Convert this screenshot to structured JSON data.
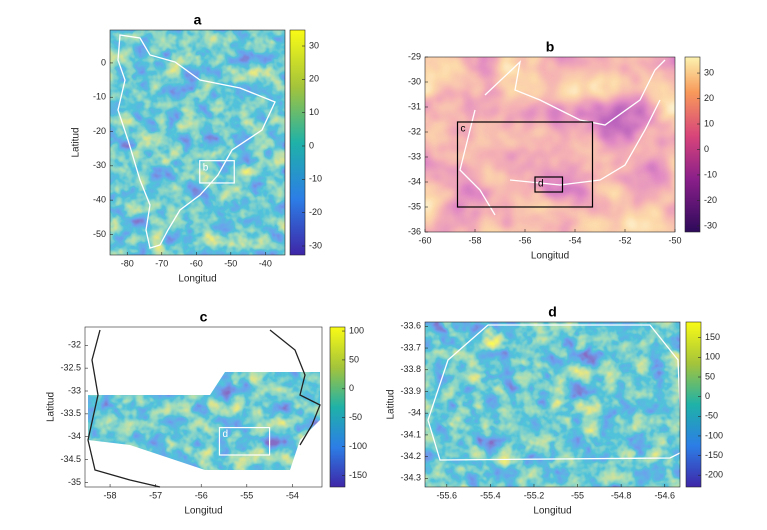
{
  "panels": [
    {
      "title": "a",
      "xlabel": "Longitud",
      "ylabel": "Latitud",
      "xlim": [
        -85,
        -34.3
      ],
      "ylim": [
        -56,
        9.6
      ],
      "xticks": [
        -80,
        -70,
        -60,
        -50,
        -40
      ],
      "yticks": [
        0,
        -10,
        -20,
        -30,
        -40,
        -50
      ],
      "colormap": "parula",
      "colorbar": {
        "lim": [
          -32.7,
          34.8
        ],
        "ticks": [
          30,
          20,
          10,
          0,
          -10,
          -20,
          -30
        ]
      },
      "boxes": [
        {
          "label": "b",
          "x": [
            -59,
            -49
          ],
          "y": [
            -35,
            -28.5
          ]
        }
      ]
    },
    {
      "title": "b",
      "xlabel": "Longitud",
      "xlim": [
        -60,
        -50
      ],
      "ylim": [
        -36,
        -29
      ],
      "xticks": [
        -60,
        -58,
        -56,
        -54,
        -52,
        -50
      ],
      "yticks": [
        -29,
        -30,
        -31,
        -32,
        -33,
        -34,
        -35,
        -36
      ],
      "colormap": "magma",
      "colorbar": {
        "lim": [
          -32.4,
          36.3
        ],
        "ticks": [
          30,
          20,
          10,
          0,
          -10,
          -20,
          -30
        ]
      },
      "boxes": [
        {
          "label": "c",
          "x": [
            -58.7,
            -53.3
          ],
          "y": [
            -35,
            -31.6
          ]
        },
        {
          "label": "d",
          "x": [
            -55.6,
            -54.5
          ],
          "y": [
            -34.4,
            -33.8
          ]
        }
      ]
    },
    {
      "title": "c",
      "xlabel": "Longitud",
      "ylabel": "Latitud",
      "xlim": [
        -58.55,
        -53.35
      ],
      "ylim": [
        -35.1,
        -31.6
      ],
      "xticks": [
        -58,
        -57,
        -56,
        -55,
        -54
      ],
      "yticks": [
        -32,
        -32.5,
        -33,
        -33.5,
        -34,
        -34.5,
        -35
      ],
      "colormap": "parula",
      "colorbar": {
        "lim": [
          -170,
          107
        ],
        "ticks": [
          100,
          50,
          0,
          -50,
          -100,
          -150
        ]
      },
      "boxes": [
        {
          "label": "d",
          "x": [
            -55.6,
            -54.5
          ],
          "y": [
            -34.4,
            -33.8
          ]
        }
      ]
    },
    {
      "title": "d",
      "xlabel": "Longitud",
      "ylabel": "Latitud",
      "xlim": [
        -55.7,
        -54.53
      ],
      "ylim": [
        -34.34,
        -33.58
      ],
      "xticks": [
        -55.6,
        -55.4,
        -55.2,
        -55,
        -54.8,
        -54.6
      ],
      "yticks": [
        -33.6,
        -33.7,
        -33.8,
        -33.9,
        -34,
        -34.1,
        -34.2,
        -34.3
      ],
      "colormap": "parula",
      "colorbar": {
        "lim": [
          -230,
          190
        ],
        "ticks": [
          150,
          100,
          50,
          0,
          -50,
          -100,
          -150,
          -200
        ]
      },
      "boxes": []
    }
  ]
}
